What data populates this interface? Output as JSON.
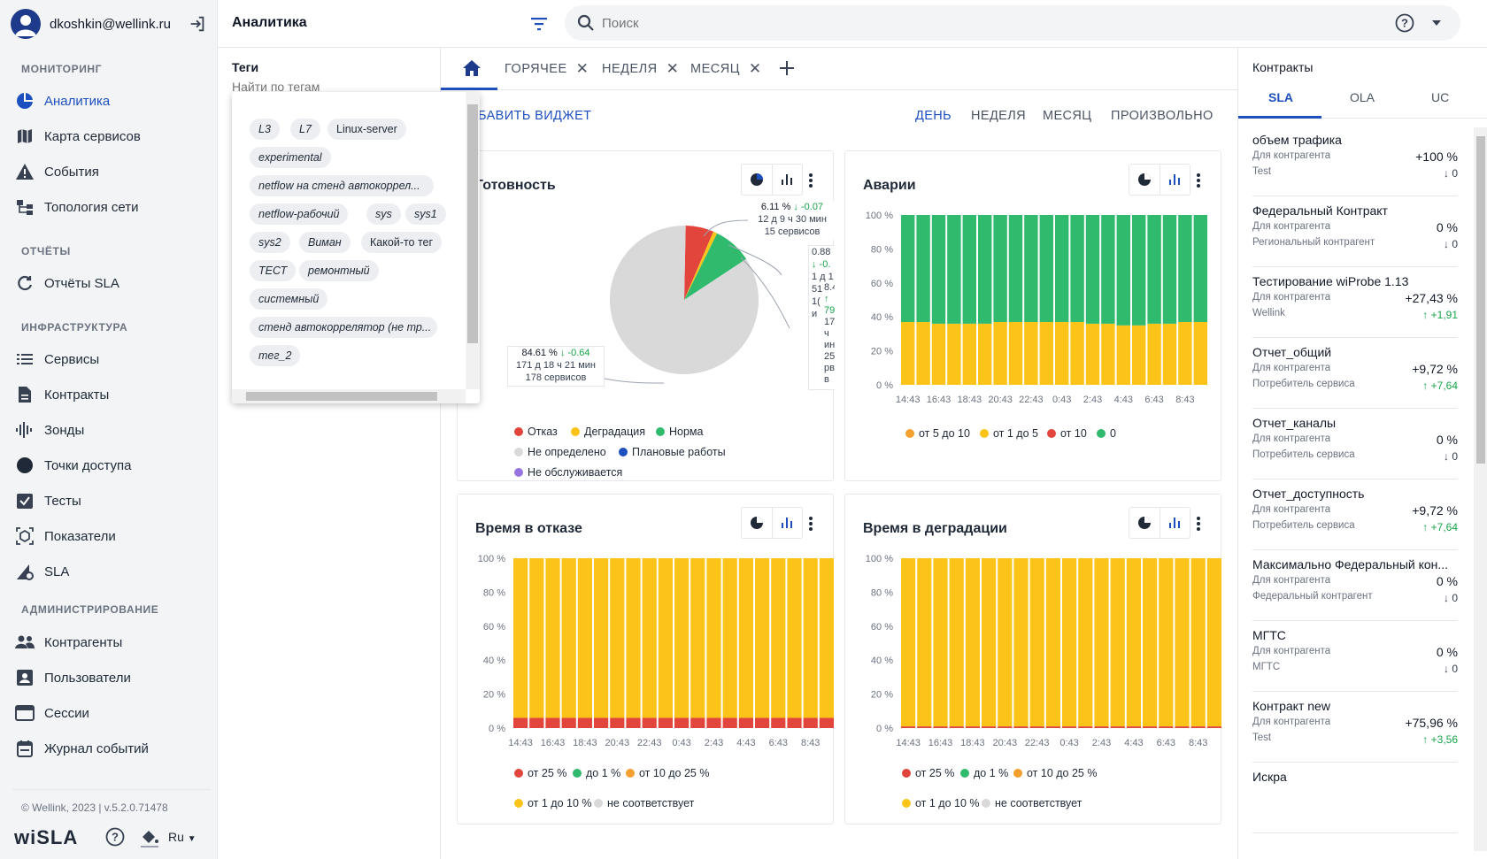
{
  "user": {
    "email": "dkoshkin@wellink.ru"
  },
  "header": {
    "title": "Аналитика",
    "search_placeholder": "Поиск"
  },
  "sidebar": {
    "sections": [
      "МОНИТОРИНГ",
      "ОТЧЁТЫ",
      "ИНФРАСТРУКТУРА",
      "АДМИНИСТРИРОВАНИЕ"
    ],
    "items": [
      {
        "label": "Аналитика",
        "icon": "pie-chart-icon",
        "active": true
      },
      {
        "label": "Карта сервисов",
        "icon": "map-icon"
      },
      {
        "label": "События",
        "icon": "warning-icon"
      },
      {
        "label": "Топология сети",
        "icon": "topology-icon"
      },
      {
        "label": "Отчёты SLA",
        "icon": "refresh-icon"
      },
      {
        "label": "Сервисы",
        "icon": "list-icon"
      },
      {
        "label": "Контракты",
        "icon": "document-icon"
      },
      {
        "label": "Зонды",
        "icon": "signal-icon"
      },
      {
        "label": "Точки доступа",
        "icon": "circle-icon"
      },
      {
        "label": "Тесты",
        "icon": "checkbox-icon"
      },
      {
        "label": "Показатели",
        "icon": "metrics-icon"
      },
      {
        "label": "SLA",
        "icon": "sla-icon"
      },
      {
        "label": "Контрагенты",
        "icon": "people-icon"
      },
      {
        "label": "Пользователи",
        "icon": "user-badge-icon"
      },
      {
        "label": "Сессии",
        "icon": "window-icon"
      },
      {
        "label": "Журнал событий",
        "icon": "calendar-icon"
      }
    ],
    "footer": {
      "copyright": "© Wellink, 2023 | v.5.2.0.71478",
      "logo": "wiSLA",
      "lang": "Ru"
    }
  },
  "tags": {
    "title": "Теги",
    "placeholder": "Найти по тегам",
    "chips": [
      "L3",
      "L7",
      "Linux-server",
      "experimental",
      "netflow на стенд автокоррел...",
      "netflow-рабочий",
      "sys",
      "sys1",
      "sys2",
      "Виман",
      "Какой-то тег",
      "ТЕСТ",
      "ремонтный",
      "системный",
      "стенд автокоррелятор (не тр...",
      "тег_2"
    ]
  },
  "tabs": [
    "ГОРЯЧЕЕ",
    "НЕДЕЛЯ",
    "МЕСЯЦ"
  ],
  "toolbar": {
    "add_widget": "БАВИТЬ ВИДЖЕТ",
    "periods": [
      "ДЕНЬ",
      "НЕДЕЛЯ",
      "МЕСЯЦ",
      "ПРОИЗВОЛЬНО"
    ],
    "active_period": "ДЕНЬ"
  },
  "widgets": {
    "readiness": {
      "title": "Готовность",
      "callout_main": {
        "pct": "84.61 %",
        "delta": "↓ -0.64",
        "time": "171 д 18 ч 21 мин",
        "count": "178 сервисов"
      },
      "callout_red": {
        "pct": "6.11 %",
        "delta": "↓ -0.07",
        "time": "12 д 9 ч 30 мин",
        "count": "15 сервисов"
      },
      "callout_clip": [
        "0.88",
        "↓ -0.",
        "1 д 1",
        "51 м",
        "1(",
        "и",
        "8.4",
        "↑",
        "79",
        "17",
        "ч",
        "ин",
        "25",
        "рв",
        "в"
      ],
      "legend": [
        "Отказ",
        "Деградация",
        "Норма",
        "Не определено",
        "Плановые работы",
        "Не обслуживается"
      ]
    },
    "accidents": {
      "title": "Аварии",
      "legend": [
        "от 5 до 10",
        "от 1 до 5",
        "от 10",
        "0"
      ]
    },
    "downtime": {
      "title": "Время в отказе",
      "legend": [
        "от 25 %",
        "до 1 %",
        "от 10 до 25 %",
        "от 1 до 10 %",
        "не соответствует"
      ]
    },
    "degradation": {
      "title": "Время в деградации",
      "legend": [
        "от 25 %",
        "до 1 %",
        "от 10 до 25 %",
        "от 1 до 10 %",
        "не соответствует"
      ]
    }
  },
  "colors": {
    "red": "#e2453c",
    "yellow": "#fcc419",
    "green": "#2fba6e",
    "orange": "#f59f2e",
    "grey": "#d9d9d9",
    "blue": "#1e4fbf",
    "purple": "#9775e0"
  },
  "chart_data": [
    {
      "type": "pie",
      "title": "Готовность",
      "labels": [
        "Отказ",
        "Деградация",
        "Норма",
        "Не определено"
      ],
      "values": [
        6.11,
        0.88,
        8.4,
        84.61
      ]
    },
    {
      "type": "bar",
      "title": "Аварии",
      "stacked": true,
      "ylim": [
        0,
        100
      ],
      "unit": "%",
      "x": [
        "14:43",
        "16:43",
        "18:43",
        "20:43",
        "22:43",
        "0:43",
        "2:43",
        "4:43",
        "6:43",
        "8:43"
      ],
      "series": [
        {
          "name": "от 1 до 5",
          "values": [
            37,
            36,
            36,
            37,
            37,
            37,
            36,
            35,
            36,
            37
          ]
        },
        {
          "name": "0",
          "values": [
            63,
            64,
            64,
            63,
            63,
            63,
            64,
            65,
            64,
            63
          ]
        }
      ]
    },
    {
      "type": "bar",
      "title": "Время в отказе",
      "stacked": true,
      "ylim": [
        0,
        100
      ],
      "unit": "%",
      "x": [
        "14:43",
        "16:43",
        "18:43",
        "20:43",
        "22:43",
        "0:43",
        "2:43",
        "4:43",
        "6:43",
        "8:43"
      ],
      "series": [
        {
          "name": "от 25 %",
          "values": [
            6,
            6,
            6,
            6,
            6,
            6,
            6,
            6,
            6,
            6
          ]
        },
        {
          "name": "от 1 до 10 %",
          "values": [
            94,
            94,
            94,
            94,
            94,
            94,
            94,
            94,
            94,
            94
          ]
        }
      ]
    },
    {
      "type": "bar",
      "title": "Время в деградации",
      "stacked": true,
      "ylim": [
        0,
        100
      ],
      "unit": "%",
      "x": [
        "14:43",
        "16:43",
        "18:43",
        "20:43",
        "22:43",
        "0:43",
        "2:43",
        "4:43",
        "6:43",
        "8:43"
      ],
      "series": [
        {
          "name": "от 25 %",
          "values": [
            1,
            1,
            1,
            1,
            1,
            1,
            1,
            1,
            1,
            1
          ]
        },
        {
          "name": "от 1 до 10 %",
          "values": [
            99,
            99,
            99,
            99,
            99,
            99,
            99,
            99,
            99,
            99
          ]
        }
      ]
    }
  ],
  "yticks": [
    "100 %",
    "80 %",
    "60 %",
    "40 %",
    "20 %",
    "0 %"
  ],
  "contracts": {
    "title": "Контракты",
    "tabs": [
      "SLA",
      "OLA",
      "UC"
    ],
    "active_tab": "SLA",
    "items": [
      {
        "name": "объем трафика",
        "sub1": "Для контрагента",
        "sub2": "Test",
        "value": "+100 %",
        "delta": "↓ 0",
        "dir": "dn"
      },
      {
        "name": "Федеральный Контракт",
        "sub1": "Для контрагента",
        "sub2": "Региональный контрагент",
        "value": "0 %",
        "delta": "↓ 0",
        "dir": "dn"
      },
      {
        "name": "Тестирование wiProbe 1.13",
        "sub1": "Для контрагента",
        "sub2": "Wellink",
        "value": "+27,43 %",
        "delta": "↑ +1,91",
        "dir": "up"
      },
      {
        "name": "Отчет_общий",
        "sub1": "Для контрагента",
        "sub2": "Потребитель сервиса",
        "value": "+9,72 %",
        "delta": "↑ +7,64",
        "dir": "up"
      },
      {
        "name": "Отчет_каналы",
        "sub1": "Для контрагента",
        "sub2": "Потребитель сервиса",
        "value": "0 %",
        "delta": "↓ 0",
        "dir": "dn"
      },
      {
        "name": "Отчет_доступность",
        "sub1": "Для контрагента",
        "sub2": "Потребитель сервиса",
        "value": "+9,72 %",
        "delta": "↑ +7,64",
        "dir": "up"
      },
      {
        "name": "Максимально Федеральный кон...",
        "sub1": "Для контрагента",
        "sub2": "Федеральный контрагент",
        "value": "0 %",
        "delta": "↓ 0",
        "dir": "dn"
      },
      {
        "name": "МГТС",
        "sub1": "Для контрагента",
        "sub2": "МГТС",
        "value": "0 %",
        "delta": "↓ 0",
        "dir": "dn"
      },
      {
        "name": "Контракт new",
        "sub1": "Для контрагента",
        "sub2": "Test",
        "value": "+75,96 %",
        "delta": "↑ +3,56",
        "dir": "up"
      },
      {
        "name": "Искра",
        "sub1": "",
        "sub2": "",
        "value": "",
        "delta": "",
        "dir": "dn"
      }
    ]
  }
}
